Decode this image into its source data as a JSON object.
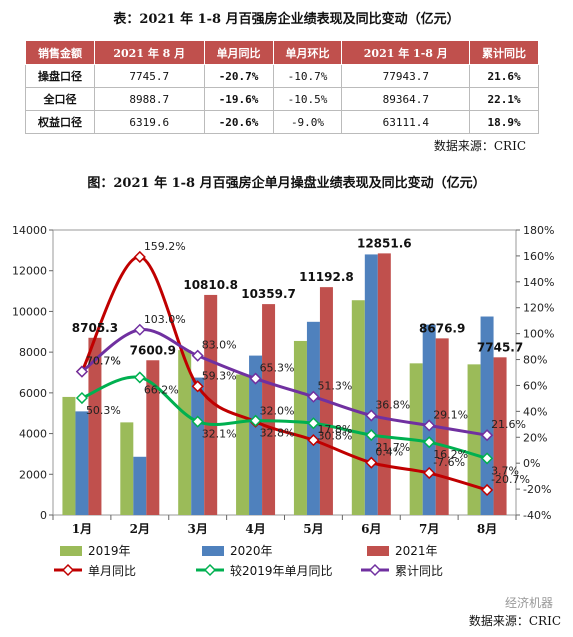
{
  "table": {
    "title": "表：2021 年 1-8 月百强房企业绩表现及同比变动（亿元）",
    "headers": [
      "销售金额",
      "2021 年 8 月",
      "单月同比",
      "单月环比",
      "2021 年 1-8 月",
      "累计同比"
    ],
    "rows": [
      {
        "label": "操盘口径",
        "aug": "7745.7",
        "yoy": "-20.7%",
        "mom": "-10.7%",
        "ytd": "77943.7",
        "cum": "21.6%"
      },
      {
        "label": "全口径",
        "aug": "8988.7",
        "yoy": "-19.6%",
        "mom": "-10.5%",
        "ytd": "89364.7",
        "cum": "22.1%"
      },
      {
        "label": "权益口径",
        "aug": "6319.6",
        "yoy": "-20.6%",
        "mom": "-9.0%",
        "ytd": "63111.4",
        "cum": "18.9%"
      }
    ],
    "source": "数据来源：CRIC"
  },
  "chart_title": "图：2021 年 1-8 月百强房企单月操盘业绩表现及同比变动（亿元）",
  "chart_data": {
    "type": "bar",
    "categories": [
      "1月",
      "2月",
      "3月",
      "4月",
      "5月",
      "6月",
      "7月",
      "8月"
    ],
    "ylim": [
      0,
      14000
    ],
    "y2lim": [
      -40,
      180
    ],
    "yticks": [
      "0",
      "2000",
      "4000",
      "6000",
      "8000",
      "10000",
      "12000",
      "14000"
    ],
    "y2ticks": [
      "-40%",
      "-20%",
      "0%",
      "20%",
      "40%",
      "60%",
      "80%",
      "100%",
      "120%",
      "140%",
      "160%",
      "180%"
    ],
    "bar_series": [
      {
        "name": "2019年",
        "color": "#9bbb59",
        "values": [
          5800,
          4550,
          8100,
          6900,
          8550,
          10550,
          7450,
          7400
        ]
      },
      {
        "name": "2020年",
        "color": "#4f81bd",
        "values": [
          5090,
          2860,
          6750,
          7830,
          9490,
          12800,
          9350,
          9750
        ]
      },
      {
        "name": "2021年",
        "color": "#c0504d",
        "values": [
          8705.3,
          7600.9,
          10810.8,
          10359.7,
          11192.8,
          12851.6,
          8676.9,
          7745.7
        ],
        "labels": [
          "8705.3",
          "7600.9",
          "10810.8",
          "10359.7",
          "11192.8",
          "12851.6",
          "8676.9",
          "7745.7"
        ]
      }
    ],
    "line_series": [
      {
        "name": "单月同比",
        "color": "#c00000",
        "marker": "diamond",
        "values": [
          70.7,
          159.2,
          59.3,
          32.0,
          17.8,
          0.4,
          -7.6,
          -20.7
        ],
        "labels": [
          "70.7%",
          "159.2%",
          "59.3%",
          "32.0%",
          "17.8%",
          "0.4%",
          "-7.6%",
          "-20.7%"
        ]
      },
      {
        "name": "较2019年单月同比",
        "color": "#00b050",
        "marker": "diamond",
        "values": [
          50.3,
          66.2,
          32.1,
          32.8,
          30.8,
          21.7,
          16.2,
          3.7
        ],
        "labels": [
          "50.3%",
          "66.2%",
          "32.1%",
          "32.8%",
          "30.8%",
          "21.7%",
          "16.2%",
          "3.7%"
        ]
      },
      {
        "name": "累计同比",
        "color": "#7030a0",
        "marker": "diamond",
        "values": [
          70.7,
          103.0,
          83.0,
          65.3,
          51.3,
          36.8,
          29.1,
          21.6
        ],
        "labels": [
          "70.7%",
          "103.0%",
          "83.0%",
          "65.3%",
          "51.3%",
          "36.8%",
          "29.1%",
          "21.6%"
        ]
      }
    ]
  },
  "watermark": "经济机器",
  "chart_source": "数据来源：CRIC"
}
